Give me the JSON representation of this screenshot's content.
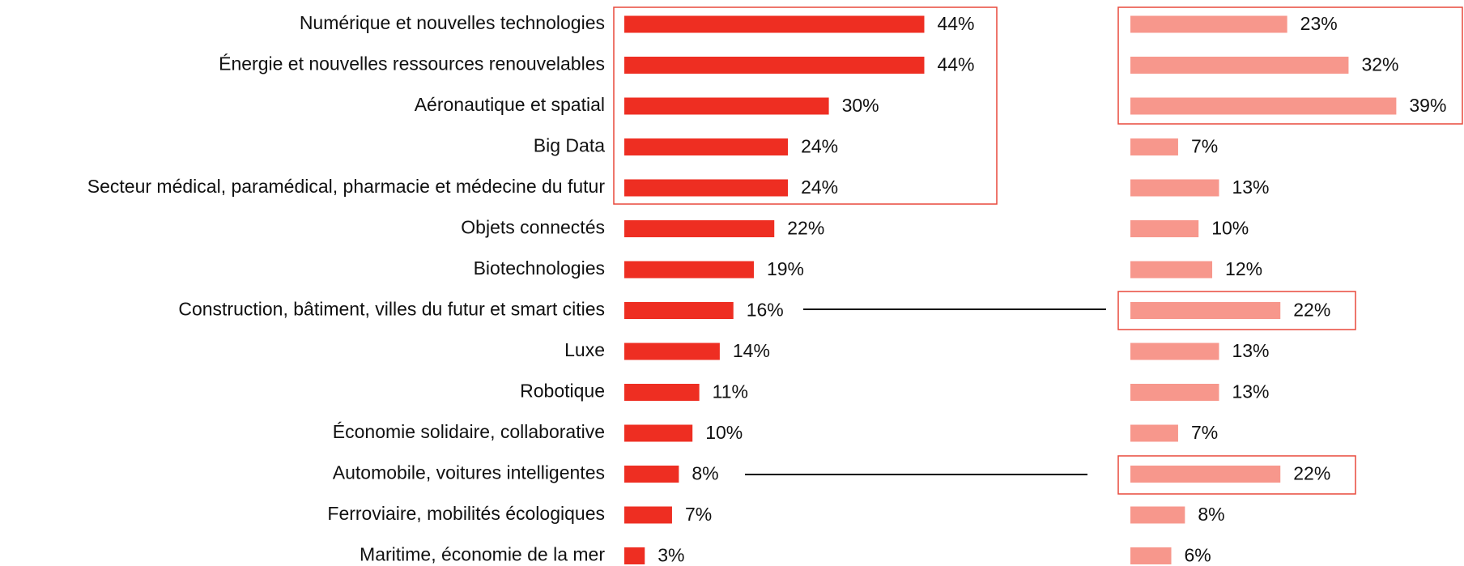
{
  "chart_data": {
    "type": "bar",
    "categories": [
      "Numérique et nouvelles technologies",
      "Énergie et nouvelles ressources renouvelables",
      "Aéronautique et spatial",
      "Big Data",
      "Secteur médical, paramédical, pharmacie et médecine du futur",
      "Objets connectés",
      "Biotechnologies",
      "Construction, bâtiment, villes du futur et smart cities",
      "Luxe",
      "Robotique",
      "Économie solidaire, collaborative",
      "Automobile, voitures intelligentes",
      "Ferroviaire, mobilités écologiques",
      "Maritime, économie de la mer"
    ],
    "series": [
      {
        "color": "#ee2e22",
        "values": [
          44,
          44,
          30,
          24,
          24,
          22,
          19,
          16,
          14,
          11,
          10,
          8,
          7,
          3
        ],
        "value_labels": [
          "44%",
          "44%",
          "30%",
          "24%",
          "24%",
          "22%",
          "19%",
          "16%",
          "14%",
          "11%",
          "10%",
          "8%",
          "7%",
          "3%"
        ]
      },
      {
        "color": "#f7978c",
        "values": [
          23,
          32,
          39,
          7,
          13,
          10,
          12,
          22,
          13,
          13,
          7,
          22,
          8,
          6
        ],
        "value_labels": [
          "23%",
          "32%",
          "39%",
          "7%",
          "13%",
          "10%",
          "12%",
          "22%",
          "13%",
          "13%",
          "7%",
          "22%",
          "8%",
          "6%"
        ]
      }
    ]
  }
}
